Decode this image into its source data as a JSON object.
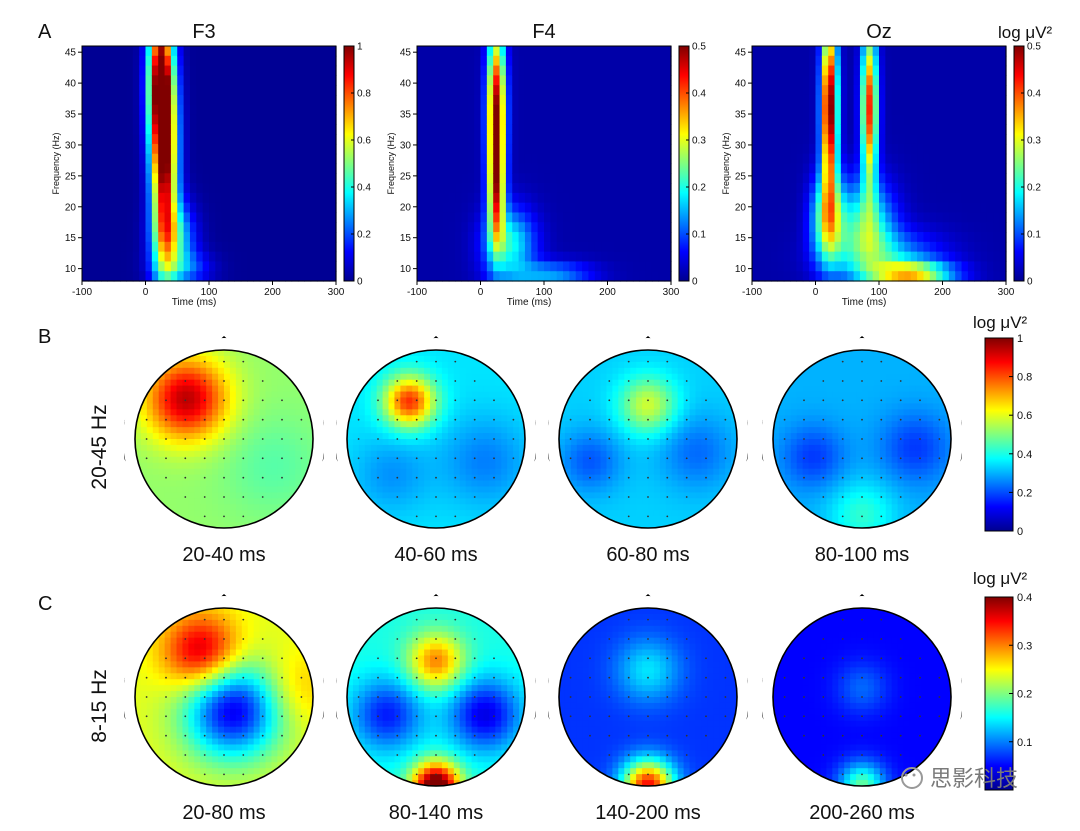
{
  "chart_data": {
    "type": "heatmap",
    "panel_labels": [
      "A",
      "B",
      "C"
    ],
    "panel_a": {
      "x_label": "Time (ms)",
      "y_label": "Frequency (Hz)",
      "x_ticks": [
        "-100",
        "0",
        "100",
        "200",
        "300"
      ],
      "y_ticks": [
        "10",
        "15",
        "20",
        "25",
        "30",
        "35",
        "40",
        "45"
      ],
      "xlim": [
        -100,
        300
      ],
      "ylim": [
        8,
        46
      ],
      "unit_label": "log μV²",
      "spectrograms": [
        {
          "title": "F3",
          "clim": [
            0,
            1
          ],
          "colorbar_ticks": [
            "1",
            "0.8",
            "0.6",
            "0.4",
            "0.2",
            "0"
          ],
          "blobs": [
            {
              "t": 30,
              "f": 28,
              "st": 14,
              "sf": 12,
              "a": 0.95
            },
            {
              "t": 22,
              "f": 41,
              "st": 13,
              "sf": 8,
              "a": 0.75
            },
            {
              "t": 45,
              "f": 15,
              "st": 22,
              "sf": 4,
              "a": 0.35
            },
            {
              "t": 60,
              "f": 10,
              "st": 30,
              "sf": 2,
              "a": 0.18
            }
          ]
        },
        {
          "title": "F4",
          "clim": [
            0,
            0.5
          ],
          "colorbar_ticks": [
            "0.5",
            "0.4",
            "0.3",
            "0.2",
            "0.1",
            "0"
          ],
          "blobs": [
            {
              "t": 25,
              "f": 36,
              "st": 10,
              "sf": 9,
              "a": 0.46
            },
            {
              "t": 25,
              "f": 22,
              "st": 9,
              "sf": 6,
              "a": 0.3
            },
            {
              "t": 45,
              "f": 14,
              "st": 28,
              "sf": 4,
              "a": 0.18
            },
            {
              "t": 110,
              "f": 9,
              "st": 45,
              "sf": 1.5,
              "a": 0.12
            }
          ]
        },
        {
          "title": "Oz",
          "clim": [
            0,
            0.5
          ],
          "colorbar_ticks": [
            "0.5",
            "0.4",
            "0.3",
            "0.2",
            "0.1",
            "0"
          ],
          "blobs": [
            {
              "t": 22,
              "f": 36,
              "st": 9,
              "sf": 10,
              "a": 0.5
            },
            {
              "t": 85,
              "f": 36,
              "st": 9,
              "sf": 9,
              "a": 0.4
            },
            {
              "t": 20,
              "f": 18,
              "st": 18,
              "sf": 5,
              "a": 0.25
            },
            {
              "t": 80,
              "f": 17,
              "st": 30,
              "sf": 5,
              "a": 0.2
            },
            {
              "t": 150,
              "f": 9,
              "st": 45,
              "sf": 1.5,
              "a": 0.28
            },
            {
              "t": 110,
              "f": 12,
              "st": 60,
              "sf": 3,
              "a": 0.12
            }
          ]
        }
      ]
    },
    "panel_b": {
      "row_label": "20-45 Hz",
      "unit_label": "log μV²",
      "clim": [
        0,
        1
      ],
      "colorbar_ticks": [
        "1",
        "0.8",
        "0.6",
        "0.4",
        "0.2",
        "0"
      ],
      "maps": [
        {
          "window": "20-40 ms",
          "base": 0.52,
          "blobs": [
            {
              "x": -0.42,
              "y": -0.45,
              "s": 0.32,
              "a": 0.42
            },
            {
              "x": 0.55,
              "y": 0.3,
              "s": 0.4,
              "a": -0.06
            }
          ]
        },
        {
          "window": "40-60 ms",
          "base": 0.35,
          "blobs": [
            {
              "x": -0.3,
              "y": -0.42,
              "s": 0.2,
              "a": 0.48
            },
            {
              "x": 0.55,
              "y": 0.25,
              "s": 0.35,
              "a": -0.1
            },
            {
              "x": -0.5,
              "y": 0.4,
              "s": 0.3,
              "a": -0.08
            }
          ]
        },
        {
          "window": "60-80 ms",
          "base": 0.33,
          "blobs": [
            {
              "x": 0.0,
              "y": -0.38,
              "s": 0.22,
              "a": 0.25
            },
            {
              "x": -0.65,
              "y": 0.25,
              "s": 0.25,
              "a": -0.12
            },
            {
              "x": 0.55,
              "y": 0.15,
              "s": 0.3,
              "a": -0.1
            }
          ]
        },
        {
          "window": "80-100 ms",
          "base": 0.3,
          "blobs": [
            {
              "x": -0.55,
              "y": 0.2,
              "s": 0.25,
              "a": -0.12
            },
            {
              "x": 0.6,
              "y": 0.1,
              "s": 0.28,
              "a": -0.12
            },
            {
              "x": 0.0,
              "y": 0.85,
              "s": 0.25,
              "a": 0.12
            }
          ]
        }
      ]
    },
    "panel_c": {
      "row_label": "8-15 Hz",
      "unit_label": "log μV²",
      "clim": [
        0,
        0.4
      ],
      "colorbar_ticks": [
        "0.4",
        "0.3",
        "0.2",
        "0.1"
      ],
      "maps": [
        {
          "window": "20-80 ms",
          "base": 0.24,
          "blobs": [
            {
              "x": -0.25,
              "y": -0.5,
              "s": 0.3,
              "a": 0.14
            },
            {
              "x": 0.1,
              "y": 0.15,
              "s": 0.38,
              "a": -0.2
            },
            {
              "x": 0.8,
              "y": -0.1,
              "s": 0.3,
              "a": 0.04
            }
          ]
        },
        {
          "window": "80-140 ms",
          "base": 0.16,
          "blobs": [
            {
              "x": 0.0,
              "y": -0.4,
              "s": 0.22,
              "a": 0.14
            },
            {
              "x": -0.55,
              "y": 0.2,
              "s": 0.28,
              "a": -0.1
            },
            {
              "x": 0.55,
              "y": 0.2,
              "s": 0.28,
              "a": -0.12
            },
            {
              "x": 0.0,
              "y": 1.0,
              "s": 0.18,
              "a": 0.28
            }
          ]
        },
        {
          "window": "140-200 ms",
          "base": 0.07,
          "blobs": [
            {
              "x": 0.0,
              "y": -0.3,
              "s": 0.25,
              "a": 0.07
            },
            {
              "x": 0.0,
              "y": 1.0,
              "s": 0.2,
              "a": 0.28
            }
          ]
        },
        {
          "window": "200-260 ms",
          "base": 0.05,
          "blobs": [
            {
              "x": 0.0,
              "y": -0.1,
              "s": 0.2,
              "a": 0.04
            },
            {
              "x": 0.0,
              "y": 1.0,
              "s": 0.18,
              "a": 0.14
            }
          ]
        }
      ]
    }
  },
  "watermark": "思影科技"
}
